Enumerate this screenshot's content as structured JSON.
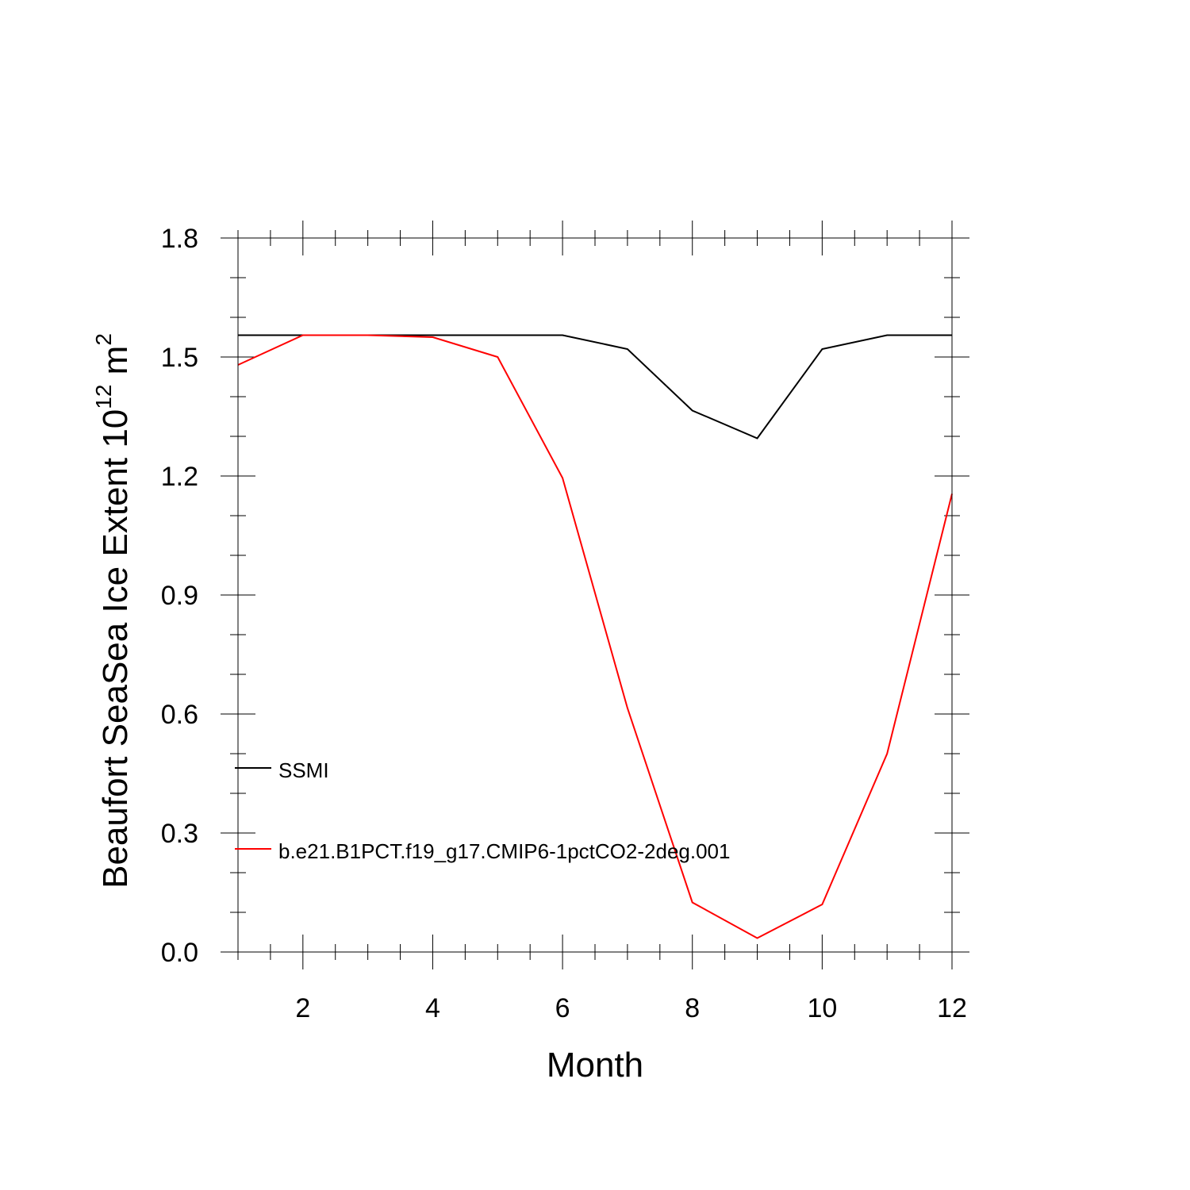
{
  "chart_data": {
    "type": "line",
    "title": "",
    "xlabel": "Month",
    "ylabel_main": "Beaufort SeaSea Ice Extent 10",
    "ylabel_sup": "12",
    "ylabel_unit": " m",
    "ylabel_unit_sup": "2",
    "xlim": [
      1,
      12
    ],
    "ylim": [
      0.0,
      1.8
    ],
    "x_major_ticks": [
      2,
      4,
      6,
      8,
      10,
      12
    ],
    "x_tick_labels": [
      "2",
      "4",
      "6",
      "8",
      "10",
      "12"
    ],
    "y_major_ticks": [
      0.0,
      0.3,
      0.6,
      0.9,
      1.2,
      1.5,
      1.8
    ],
    "y_tick_labels": [
      "0.0",
      "0.3",
      "0.6",
      "0.9",
      "1.2",
      "1.5",
      "1.8"
    ],
    "grid": false,
    "legend_position": "lower-left",
    "x": [
      1,
      2,
      3,
      4,
      5,
      6,
      7,
      8,
      9,
      10,
      11,
      12
    ],
    "series": [
      {
        "name": "SSMI",
        "color": "#000000",
        "values": [
          1.555,
          1.555,
          1.555,
          1.555,
          1.555,
          1.555,
          1.52,
          1.365,
          1.295,
          1.52,
          1.555,
          1.555
        ]
      },
      {
        "name": "b.e21.B1PCT.f19_g17.CMIP6-1pctCO2-2deg.001",
        "color": "#ff0000",
        "values": [
          1.48,
          1.555,
          1.555,
          1.55,
          1.5,
          1.195,
          0.615,
          0.125,
          0.035,
          0.12,
          0.5,
          1.155
        ]
      }
    ]
  }
}
